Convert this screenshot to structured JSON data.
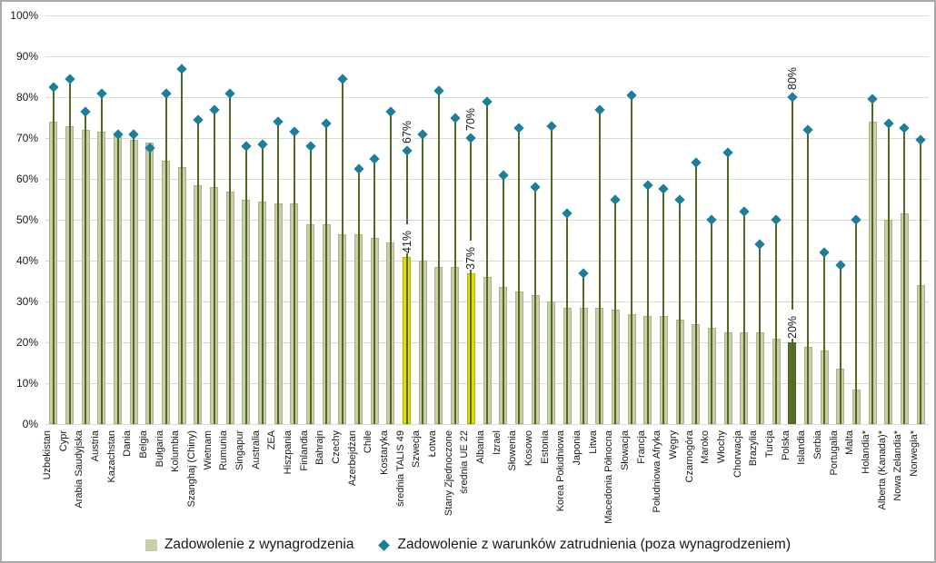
{
  "chart_data": {
    "type": "bar",
    "title": "",
    "xlabel": "",
    "ylabel": "",
    "ylim": [
      0,
      100
    ],
    "grid": true,
    "legend_position": "bottom",
    "ytick_labels": [
      "0%",
      "10%",
      "20%",
      "30%",
      "40%",
      "50%",
      "60%",
      "70%",
      "80%",
      "90%",
      "100%"
    ],
    "legend": [
      "Zadowolenie z wynagrodzenia",
      "Zadowolenie z warunków zatrudnienia (poza wynagrodzeniem)"
    ],
    "categories": [
      "Uzbekistan",
      "Cypr",
      "Arabia Saudyjska",
      "Austria",
      "Kazachstan",
      "Dania",
      "Belgia",
      "Bułgaria",
      "Kolumbia",
      "Szanghaj (Chiny)",
      "Wietnam",
      "Rumunia",
      "Singapur",
      "Australia",
      "ZEA",
      "Hiszpania",
      "Finlandia",
      "Bahrajn",
      "Czechy",
      "Azerbejdżan",
      "Chile",
      "Kostaryka",
      "średnia TALIS 49",
      "Szwecja",
      "Łotwa",
      "Stany Zjednoczone",
      "średnia UE 22",
      "Albania",
      "Izrael",
      "Słowenia",
      "Kosowo",
      "Estonia",
      "Korea Południowa",
      "Japonia",
      "Litwa",
      "Macedonia Północna",
      "Słowacja",
      "Francja",
      "Południowa Afryka",
      "Węgry",
      "Czarnogóra",
      "Maroko",
      "Włochy",
      "Chorwacja",
      "Brazylia",
      "Turcja",
      "Polska",
      "Islandia",
      "Serbia",
      "Portugalia",
      "Malta",
      "Holandia*",
      "Alberta (Kanada)*",
      "Nowa Zelandia*",
      "Norwegia*"
    ],
    "series": [
      {
        "name": "Zadowolenie z wynagrodzenia",
        "mark": "bar",
        "values": [
          74,
          73,
          72,
          71.5,
          71,
          69.5,
          69,
          64.5,
          63,
          58.5,
          58,
          57,
          55,
          54.5,
          54,
          54,
          49,
          49,
          46.5,
          46.5,
          45.5,
          44.5,
          41,
          40,
          38.5,
          38.5,
          37,
          36,
          33.5,
          32.5,
          31.5,
          30,
          28.5,
          28.5,
          28.5,
          28,
          27,
          26.5,
          26.5,
          25.5,
          24.5,
          23.5,
          22.5,
          22.5,
          22.5,
          21,
          20,
          19,
          18,
          13.5,
          8.5,
          74,
          50,
          51.5,
          34
        ]
      },
      {
        "name": "Zadowolenie z warunków zatrudnienia (poza wynagrodzeniem)",
        "mark": "diamond",
        "values": [
          82.5,
          84.5,
          76.5,
          81,
          71,
          71,
          67.5,
          81,
          87,
          74.5,
          77,
          81,
          68,
          68.5,
          74,
          71.5,
          68,
          73.5,
          84.5,
          62.5,
          65,
          76.5,
          67,
          71,
          81.5,
          75,
          70,
          79,
          61,
          72.5,
          58,
          73,
          51.5,
          37,
          77,
          55,
          80.5,
          58.5,
          57.5,
          55,
          64,
          50,
          66.5,
          52,
          44,
          50,
          80,
          72,
          42,
          39,
          50,
          79.5,
          73.5,
          72.5,
          69.5
        ]
      }
    ],
    "highlights": [
      {
        "category": "średnia TALIS 49",
        "style": "yellow",
        "bar_label": "41%",
        "point_label": "67%"
      },
      {
        "category": "średnia UE 22",
        "style": "yellow",
        "bar_label": "37%",
        "point_label": "70%"
      },
      {
        "category": "Polska",
        "style": "dark-green",
        "bar_label": "20%",
        "point_label": "80%"
      }
    ],
    "colors": {
      "bar_fill": "#c9cda9",
      "bar_border": "#adb286",
      "stem": "#4f6b21",
      "diamond": "#1b7f99",
      "highlight_fill": "#e2dd00",
      "highlight_border": "#b5b200",
      "poland_fill": "#587026",
      "poland_border": "#4a6120",
      "gridline": "#d9d9d9",
      "text": "#1a1a1a"
    }
  }
}
